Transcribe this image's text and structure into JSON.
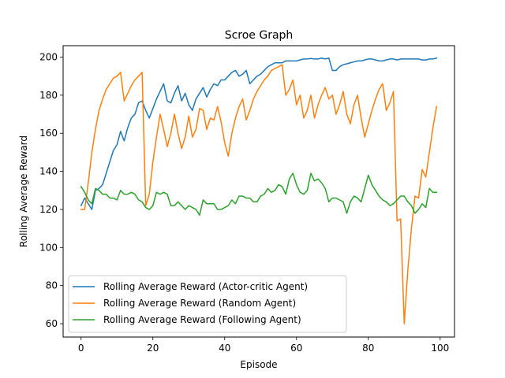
{
  "chart_data": {
    "type": "line",
    "title": "Scroe Graph",
    "xlabel": "Episode",
    "ylabel": "Rolling Average Reward",
    "xlim": [
      -5,
      104
    ],
    "ylim": [
      53,
      206
    ],
    "xticks": [
      0,
      20,
      40,
      60,
      80,
      100
    ],
    "yticks": [
      60,
      80,
      100,
      120,
      140,
      160,
      180,
      200
    ],
    "grid": false,
    "legend_position": "lower-left",
    "x": [
      0,
      1,
      2,
      3,
      4,
      5,
      6,
      7,
      8,
      9,
      10,
      11,
      12,
      13,
      14,
      15,
      16,
      17,
      18,
      19,
      20,
      21,
      22,
      23,
      24,
      25,
      26,
      27,
      28,
      29,
      30,
      31,
      32,
      33,
      34,
      35,
      36,
      37,
      38,
      39,
      40,
      41,
      42,
      43,
      44,
      45,
      46,
      47,
      48,
      49,
      50,
      51,
      52,
      53,
      54,
      55,
      56,
      57,
      58,
      59,
      60,
      61,
      62,
      63,
      64,
      65,
      66,
      67,
      68,
      69,
      70,
      71,
      72,
      73,
      74,
      75,
      76,
      77,
      78,
      79,
      80,
      81,
      82,
      83,
      84,
      85,
      86,
      87,
      88,
      89,
      90,
      91,
      92,
      93,
      94,
      95,
      96,
      97,
      98,
      99
    ],
    "series": [
      {
        "name": "Rolling Average Reward (Actor-critic Agent)",
        "color": "#1f77b4",
        "values": [
          122,
          126,
          123,
          120,
          130,
          131,
          133,
          139,
          145,
          151,
          154,
          161,
          156,
          163,
          168,
          170,
          176,
          177,
          172,
          168,
          173,
          178,
          182,
          186,
          177,
          176,
          181,
          185,
          177,
          181,
          175,
          172,
          178,
          181,
          184,
          179,
          183,
          186,
          185,
          188,
          188,
          190,
          192,
          193,
          190,
          191,
          193,
          186,
          188,
          190,
          191,
          193,
          195,
          196,
          197,
          197,
          197,
          198,
          198,
          198,
          198,
          198.5,
          199,
          199,
          199.3,
          199,
          199,
          199.5,
          199,
          199.5,
          193,
          193,
          195,
          196,
          196.5,
          197,
          197.5,
          198,
          198,
          198.5,
          199,
          199,
          198.5,
          198,
          198,
          198.5,
          199,
          199,
          198.5,
          199,
          199,
          199,
          199,
          199,
          199,
          198.5,
          198.5,
          199,
          199,
          199.5
        ]
      },
      {
        "name": "Rolling Average Reward (Random Agent)",
        "color": "#ff7f0e",
        "values": [
          120,
          120,
          134,
          150,
          162,
          172,
          178,
          183,
          186,
          189,
          190,
          192,
          177,
          181,
          185,
          188,
          190,
          192,
          122,
          128,
          145,
          158,
          170,
          162,
          153,
          160,
          170,
          160,
          152,
          158,
          169,
          158,
          162,
          173,
          172,
          162,
          168,
          167,
          174,
          166,
          155,
          148,
          160,
          168,
          174,
          178,
          167,
          172,
          178,
          182,
          185,
          188,
          190,
          193,
          194,
          195,
          196,
          180,
          183,
          188,
          175,
          180,
          168,
          172,
          180,
          168,
          175,
          180,
          184,
          178,
          180,
          170,
          175,
          182,
          170,
          165,
          175,
          180,
          168,
          158,
          165,
          172,
          178,
          183,
          186,
          172,
          176,
          182,
          114,
          115,
          60,
          88,
          110,
          127,
          126,
          141,
          137,
          150,
          163,
          174
        ]
      },
      {
        "name": "Rolling Average Reward (Following Agent)",
        "color": "#2ca02c",
        "values": [
          132,
          129,
          125,
          123,
          131,
          130,
          128,
          128,
          126,
          126,
          125,
          130,
          128,
          128,
          129,
          128,
          125,
          124,
          121,
          120,
          122,
          129,
          128,
          129,
          128,
          122,
          122,
          124,
          122,
          120,
          122,
          121,
          120,
          117,
          125,
          123,
          123,
          123,
          120,
          120,
          121,
          122,
          125,
          123,
          127,
          127,
          126,
          126,
          124,
          124,
          127,
          128,
          131,
          129,
          130,
          133,
          132,
          128,
          136,
          139,
          133,
          129,
          128,
          130,
          139,
          135,
          136,
          134,
          131,
          124,
          126,
          126,
          125,
          124,
          118,
          124,
          127,
          126,
          124,
          131,
          138,
          133,
          130,
          127,
          125,
          124,
          122,
          123,
          125,
          127,
          127,
          124,
          122,
          118,
          120,
          123,
          121,
          131,
          129,
          129
        ]
      }
    ]
  }
}
